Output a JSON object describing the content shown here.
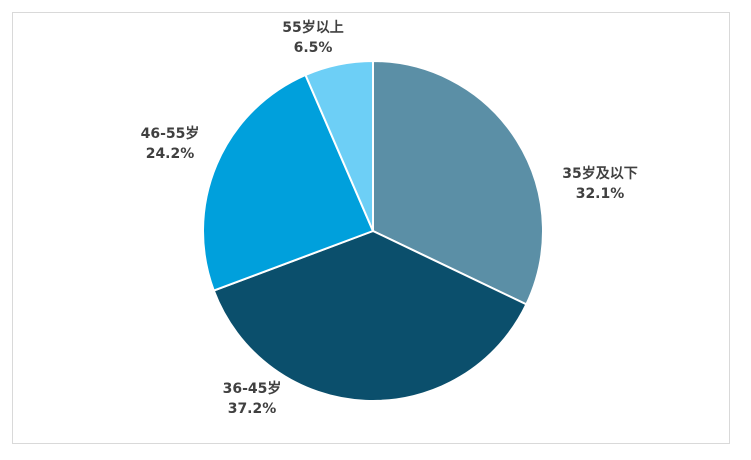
{
  "chart_data": {
    "type": "pie",
    "title": "",
    "slices": [
      {
        "label": "35岁及以下",
        "value": 32.1,
        "display": "32.1%",
        "color": "#5b8fa6"
      },
      {
        "label": "36-45岁",
        "value": 37.2,
        "display": "37.2%",
        "color": "#0b4f6c"
      },
      {
        "label": "46-55岁",
        "value": 24.2,
        "display": "24.2%",
        "color": "#00a0dc"
      },
      {
        "label": "55岁以上",
        "value": 6.5,
        "display": "6.5%",
        "color": "#6dcff6"
      }
    ],
    "start_angle_deg": 0,
    "direction": "clockwise",
    "legend": "none"
  }
}
